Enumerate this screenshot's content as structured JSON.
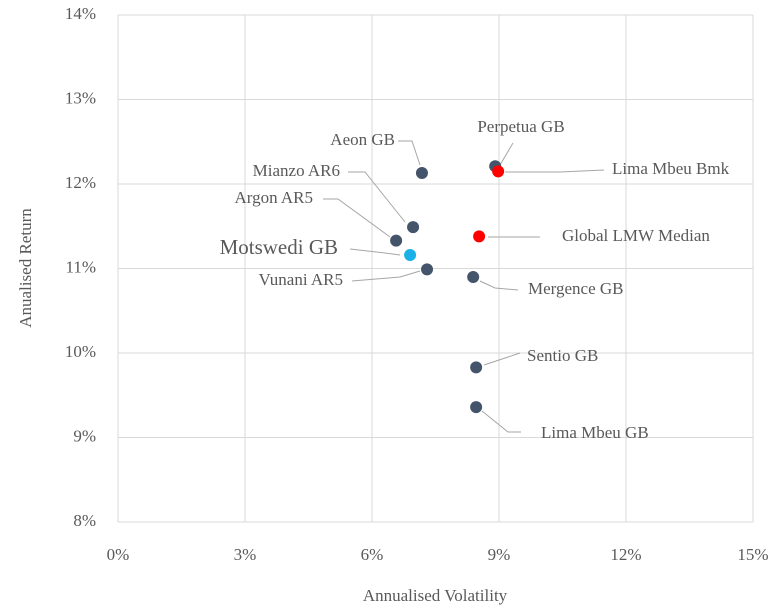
{
  "chart_data": {
    "type": "scatter",
    "x_label": "Annualised Volatility",
    "y_label": "Anualised Return",
    "xlim": [
      0,
      15
    ],
    "ylim": [
      8,
      14
    ],
    "xticks": [
      {
        "value": 0,
        "label": "0%"
      },
      {
        "value": 3,
        "label": "3%"
      },
      {
        "value": 6,
        "label": "6%"
      },
      {
        "value": 9,
        "label": "9%"
      },
      {
        "value": 12,
        "label": "12%"
      },
      {
        "value": 15,
        "label": "15%"
      }
    ],
    "yticks": [
      {
        "value": 8,
        "label": "8%"
      },
      {
        "value": 9,
        "label": "9%"
      },
      {
        "value": 10,
        "label": "10%"
      },
      {
        "value": 11,
        "label": "11%"
      },
      {
        "value": 12,
        "label": "12%"
      },
      {
        "value": 13,
        "label": "13%"
      },
      {
        "value": 14,
        "label": "14%"
      }
    ],
    "grid": true,
    "points": [
      {
        "name": "Aeon GB",
        "x": 7.18,
        "y": 12.13,
        "color": "#44546a"
      },
      {
        "name": "Perpetua GB",
        "x": 8.91,
        "y": 12.21,
        "color": "#44546a"
      },
      {
        "name": "Lima Mbeu Bmk",
        "x": 8.98,
        "y": 12.15,
        "color": "#ff0000"
      },
      {
        "name": "Mianzo AR6",
        "x": 6.97,
        "y": 11.49,
        "color": "#44546a"
      },
      {
        "name": "Argon AR5",
        "x": 6.57,
        "y": 11.33,
        "color": "#44546a"
      },
      {
        "name": "Motswedi GB",
        "x": 6.9,
        "y": 11.16,
        "color": "#1ab0e8"
      },
      {
        "name": "Global LMW Median",
        "x": 8.53,
        "y": 11.38,
        "color": "#ff0000"
      },
      {
        "name": "Vunani AR5",
        "x": 7.3,
        "y": 10.99,
        "color": "#44546a"
      },
      {
        "name": "Mergence GB",
        "x": 8.39,
        "y": 10.9,
        "color": "#44546a"
      },
      {
        "name": "Sentio GB",
        "x": 8.46,
        "y": 9.83,
        "color": "#44546a"
      },
      {
        "name": "Lima Mbeu GB",
        "x": 8.46,
        "y": 9.36,
        "color": "#44546a"
      }
    ]
  }
}
